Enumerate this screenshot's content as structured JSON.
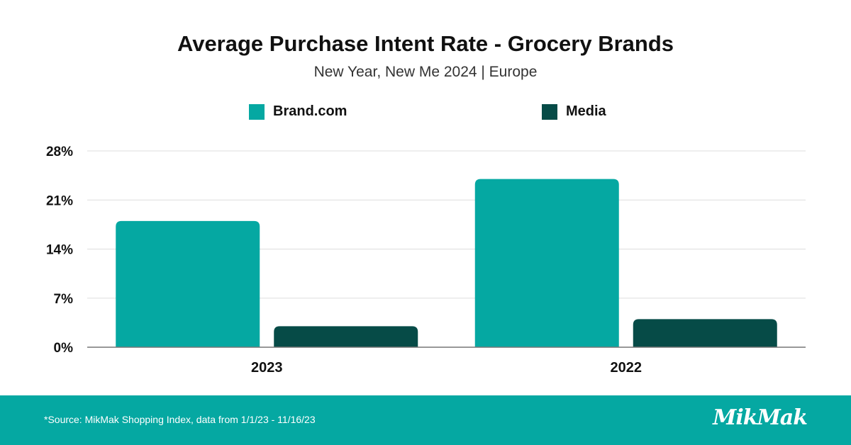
{
  "title": "Average Purchase Intent Rate - Grocery Brands",
  "subtitle": "New Year, New Me 2024 | Europe",
  "legend": [
    {
      "label": "Brand.com",
      "color": "#05a8a2"
    },
    {
      "label": "Media",
      "color": "#064b47"
    }
  ],
  "chart_data": {
    "type": "bar",
    "categories": [
      "2023",
      "2022"
    ],
    "series": [
      {
        "name": "Brand.com",
        "values": [
          18,
          24
        ],
        "color": "#05a8a2"
      },
      {
        "name": "Media",
        "values": [
          3,
          4
        ],
        "color": "#064b47"
      }
    ],
    "ylim": [
      0,
      28
    ],
    "yticks": [
      "0%",
      "7%",
      "14%",
      "21%",
      "28%"
    ],
    "ytick_values": [
      0,
      7,
      14,
      21,
      28
    ],
    "grid": true,
    "legend_position": "top"
  },
  "footer": {
    "source": "*Source: MikMak Shopping Index, data from 1/1/23 - 11/16/23",
    "logo": "MikMak",
    "background": "#05a8a2"
  }
}
